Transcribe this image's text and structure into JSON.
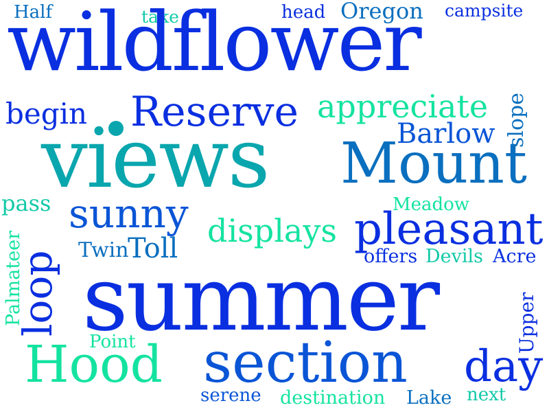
{
  "colors": {
    "background": "#ffffff",
    "blue": "#0a2fe0",
    "mid_blue": "#0a55d6",
    "steel_blue": "#0a6fbf",
    "teal": "#0aa6ae",
    "aqua": "#12c9a8",
    "mint": "#14e3a0"
  },
  "words": [
    {
      "text": "Half"
    },
    {
      "text": "take"
    },
    {
      "text": "head"
    },
    {
      "text": "Oregon"
    },
    {
      "text": "campsite"
    },
    {
      "text": "wildflower"
    },
    {
      "text": "Reserve"
    },
    {
      "text": "appreciate"
    },
    {
      "text": "begin"
    },
    {
      "text": "slope"
    },
    {
      "text": "Barlow"
    },
    {
      "text": "views"
    },
    {
      "text": "Mount"
    },
    {
      "text": "pass"
    },
    {
      "text": "Meadow"
    },
    {
      "text": "sunny"
    },
    {
      "text": "displays"
    },
    {
      "text": "pleasant"
    },
    {
      "text": "Palmateer"
    },
    {
      "text": "loop"
    },
    {
      "text": "Twin"
    },
    {
      "text": "Toll"
    },
    {
      "text": "offers"
    },
    {
      "text": "Devils"
    },
    {
      "text": "Acre"
    },
    {
      "text": "summer"
    },
    {
      "text": "Point"
    },
    {
      "text": "Upper"
    },
    {
      "text": "Hood"
    },
    {
      "text": "section"
    },
    {
      "text": "day"
    },
    {
      "text": "serene"
    },
    {
      "text": "destination"
    },
    {
      "text": "Lake"
    },
    {
      "text": "next"
    }
  ]
}
